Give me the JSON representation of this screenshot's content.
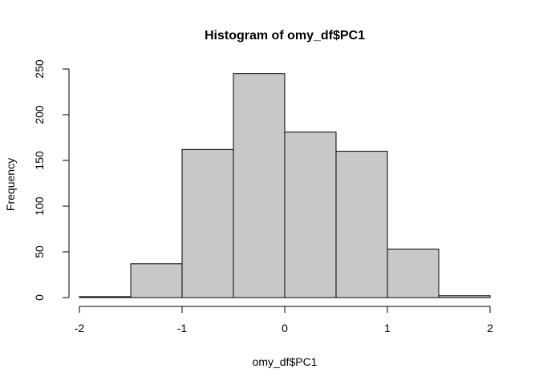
{
  "chart_data": {
    "type": "bar",
    "title": "Histogram of omy_df$PC1",
    "xlabel": "omy_df$PC1",
    "ylabel": "Frequency",
    "bin_edges": [
      -2,
      -1.5,
      -1,
      -0.5,
      0,
      0.5,
      1,
      1.5,
      2
    ],
    "values": [
      1,
      37,
      162,
      245,
      181,
      160,
      53,
      2
    ],
    "xlim": [
      -2,
      2
    ],
    "ylim": [
      0,
      250
    ],
    "x_ticks": [
      -2,
      -1,
      0,
      1,
      2
    ],
    "y_ticks": [
      0,
      50,
      100,
      150,
      200,
      250
    ],
    "bar_fill": "#c8c8c8",
    "bar_stroke": "#000000",
    "grid": false
  }
}
